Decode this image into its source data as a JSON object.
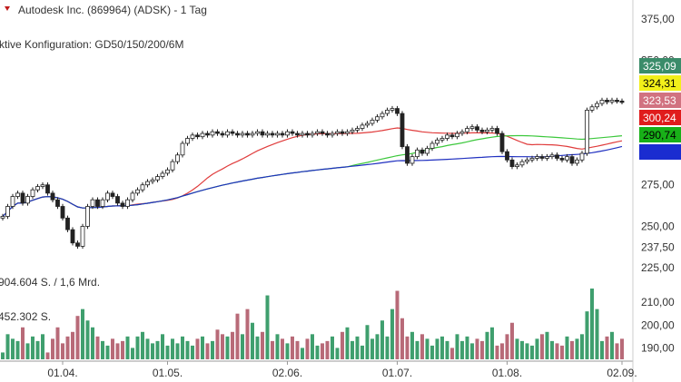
{
  "title": "Autodesk Inc. (869964) (ADSK) - 1 Tag",
  "config_label": "ktive Konfiguration: GD50/150/200/6M",
  "volume_labels": [
    "904.604 S. / 1,6 Mrd.",
    "452.302 S."
  ],
  "colors": {
    "up": "#3f9f6e",
    "down": "#b86a78",
    "ma50": "#e03c3c",
    "ma150": "#3cc83c",
    "ma200": "#2030c0",
    "grid": "#d9d9d9"
  },
  "chart_data": {
    "type": "candlestick",
    "title": "Autodesk Inc. (869964) (ADSK) - 1 Tag",
    "price_axis": {
      "ticks": [
        "375,00",
        "350,00",
        "275,00",
        "250,00",
        "237,50",
        "225,00"
      ],
      "tick_values": [
        375,
        350,
        275,
        250,
        237.5,
        225
      ],
      "ylim": [
        218,
        382
      ]
    },
    "volume_axis": {
      "ticks": [
        "210,00",
        "200,00",
        "190,00"
      ],
      "tick_values": [
        210,
        200,
        190
      ]
    },
    "x_ticks": [
      "01.04.",
      "01.05.",
      "02.06.",
      "01.07.",
      "01.08.",
      "02.09."
    ],
    "x_tick_index": [
      12,
      33,
      57,
      79,
      101,
      124
    ],
    "price_badges": [
      {
        "label": "325,09",
        "value": 325.09,
        "bg": "#3a8c6a",
        "fg": "#ffffff"
      },
      {
        "label": "324,31",
        "value": 324.31,
        "bg": "#f2ef1a",
        "fg": "#000000"
      },
      {
        "label": "323,53",
        "value": 323.53,
        "bg": "#d17280",
        "fg": "#ffffff"
      },
      {
        "label": "300,24",
        "value": 300.24,
        "bg": "#e01c1c",
        "fg": "#ffffff"
      },
      {
        "label": "290,74",
        "value": 290.74,
        "bg": "#18b018",
        "fg": "#000000"
      },
      {
        "label": "",
        "value": 287.8,
        "bg": "#1a2cd0",
        "fg": "#ffffff"
      }
    ],
    "closes": [
      256,
      262,
      268,
      270,
      264,
      268,
      272,
      274,
      275,
      270,
      266,
      262,
      255,
      248,
      240,
      238,
      250,
      262,
      266,
      262,
      266,
      270,
      268,
      264,
      262,
      266,
      270,
      272,
      275,
      277,
      278,
      280,
      282,
      284,
      289,
      293,
      300,
      303,
      305,
      304,
      306,
      305,
      307,
      306,
      305,
      307,
      306,
      305,
      306,
      305,
      306,
      307,
      305,
      306,
      305,
      306,
      305,
      307,
      306,
      305,
      306,
      305,
      306,
      307,
      306,
      305,
      306,
      307,
      306,
      307,
      308,
      309,
      311,
      312,
      314,
      316,
      318,
      320,
      321,
      318,
      298,
      288,
      292,
      296,
      294,
      297,
      300,
      302,
      303,
      305,
      304,
      306,
      307,
      309,
      310,
      308,
      307,
      308,
      309,
      306,
      295,
      290,
      286,
      287,
      289,
      290,
      291,
      292,
      291,
      292,
      293,
      291,
      290,
      292,
      288,
      290,
      294,
      320,
      322,
      324,
      326,
      325,
      326,
      325.5,
      325
    ],
    "volumes": [
      188,
      196,
      194,
      193,
      199,
      192,
      195,
      193,
      196,
      188,
      194,
      199,
      192,
      195,
      197,
      204,
      207,
      202,
      199,
      195,
      193,
      191,
      194,
      192,
      193,
      195,
      190,
      195,
      197,
      194,
      192,
      193,
      196,
      191,
      194,
      192,
      195,
      193,
      191,
      194,
      195,
      192,
      193,
      198,
      196,
      195,
      197,
      205,
      196,
      207,
      201,
      195,
      197,
      213,
      193,
      196,
      194,
      192,
      195,
      193,
      190,
      194,
      196,
      191,
      192,
      193,
      195,
      190,
      197,
      199,
      193,
      195,
      191,
      200,
      194,
      196,
      202,
      195,
      207,
      215,
      203,
      195,
      197,
      193,
      196,
      194,
      191,
      194,
      195,
      193,
      190,
      196,
      193,
      195,
      192,
      194,
      193,
      197,
      199,
      191,
      192,
      196,
      201,
      194,
      193,
      192,
      191,
      194,
      196,
      197,
      193,
      192,
      191,
      195,
      193,
      194,
      196,
      206,
      216,
      207,
      193,
      195,
      197,
      192,
      194
    ]
  }
}
